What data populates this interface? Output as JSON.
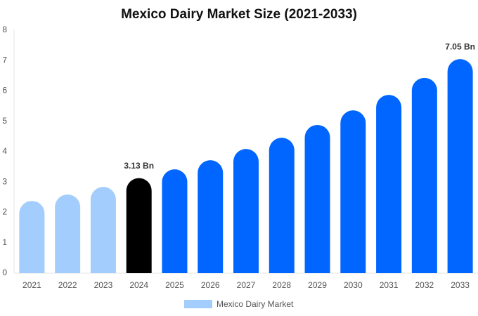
{
  "chart_data": {
    "type": "bar",
    "title": "Mexico Dairy Market Size (2021-2033)",
    "categories": [
      "2021",
      "2022",
      "2023",
      "2024",
      "2025",
      "2026",
      "2027",
      "2028",
      "2029",
      "2030",
      "2031",
      "2032",
      "2033"
    ],
    "series": [
      {
        "name": "Mexico Dairy Market",
        "color": "#a3cdfd",
        "colors": [
          "#a3cdfd",
          "#a3cdfd",
          "#a3cdfd",
          "#000000",
          "#0066ff",
          "#0066ff",
          "#0066ff",
          "#0066ff",
          "#0066ff",
          "#0066ff",
          "#0066ff",
          "#0066ff",
          "#0066ff"
        ],
        "values": [
          2.38,
          2.59,
          2.84,
          3.13,
          3.42,
          3.72,
          4.09,
          4.46,
          4.88,
          5.36,
          5.87,
          6.43,
          7.05
        ],
        "value_labels": [
          null,
          null,
          null,
          "3.13 Bn",
          null,
          null,
          null,
          null,
          null,
          null,
          null,
          null,
          "7.05 Bn"
        ]
      }
    ],
    "ylim": [
      0,
      8
    ],
    "yticks": [
      0,
      1,
      2,
      3,
      4,
      5,
      6,
      7,
      8
    ],
    "grid": false
  }
}
